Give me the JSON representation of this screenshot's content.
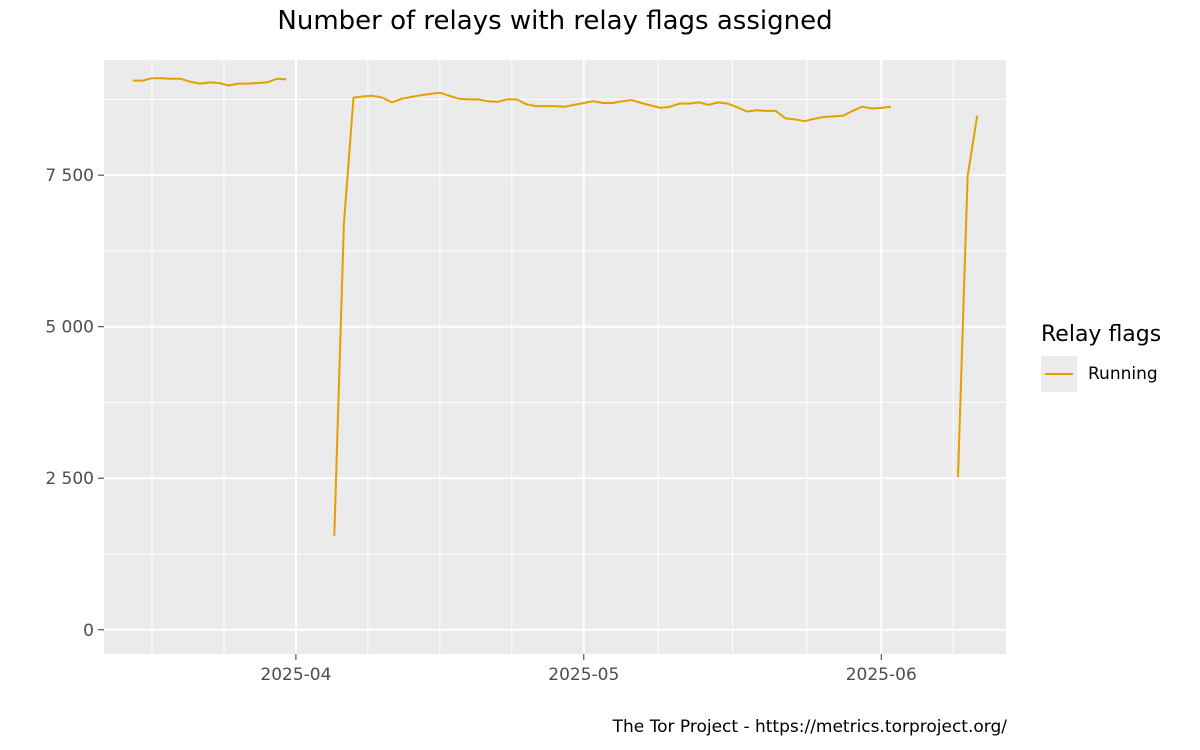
{
  "chart_data": {
    "type": "line",
    "title": "Number of relays with relay flags assigned",
    "xlabel": "",
    "ylabel": "",
    "legend_title": "Relay flags",
    "legend_position": "right",
    "caption": "The Tor Project - https://metrics.torproject.org/",
    "grid": true,
    "x_ticks": [
      "2025-04",
      "2025-05",
      "2025-06"
    ],
    "y_ticks": [
      0,
      2500,
      5000,
      7500
    ],
    "y_tick_labels": [
      "0",
      "2 500",
      "5 000",
      "7 500"
    ],
    "xlim": [
      "2025-03-12",
      "2025-06-14"
    ],
    "ylim": [
      -400,
      9400
    ],
    "colors": {
      "Running": "#E69F00",
      "panel": "#EBEBEB",
      "grid": "#FFFFFF"
    },
    "series": [
      {
        "name": "Running",
        "segments": [
          [
            [
              "2025-03-15",
              9060
            ],
            [
              "2025-03-16",
              9060
            ],
            [
              "2025-03-17",
              9100
            ],
            [
              "2025-03-18",
              9100
            ],
            [
              "2025-03-19",
              9090
            ],
            [
              "2025-03-20",
              9090
            ],
            [
              "2025-03-21",
              9040
            ],
            [
              "2025-03-22",
              9010
            ],
            [
              "2025-03-23",
              9030
            ],
            [
              "2025-03-24",
              9020
            ],
            [
              "2025-03-25",
              8980
            ],
            [
              "2025-03-26",
              9010
            ],
            [
              "2025-03-27",
              9010
            ],
            [
              "2025-03-28",
              9020
            ],
            [
              "2025-03-29",
              9030
            ],
            [
              "2025-03-30",
              9090
            ],
            [
              "2025-03-31",
              9080
            ]
          ],
          [
            [
              "2025-04-05",
              1550
            ],
            [
              "2025-04-06",
              6700
            ],
            [
              "2025-04-07",
              8780
            ],
            [
              "2025-04-08",
              8800
            ],
            [
              "2025-04-09",
              8810
            ],
            [
              "2025-04-10",
              8780
            ],
            [
              "2025-04-11",
              8700
            ],
            [
              "2025-04-12",
              8760
            ],
            [
              "2025-04-13",
              8790
            ],
            [
              "2025-04-14",
              8820
            ],
            [
              "2025-04-15",
              8840
            ],
            [
              "2025-04-16",
              8860
            ],
            [
              "2025-04-17",
              8810
            ],
            [
              "2025-04-18",
              8760
            ],
            [
              "2025-04-19",
              8750
            ],
            [
              "2025-04-20",
              8750
            ],
            [
              "2025-04-21",
              8720
            ],
            [
              "2025-04-22",
              8710
            ],
            [
              "2025-04-23",
              8750
            ],
            [
              "2025-04-24",
              8750
            ],
            [
              "2025-04-25",
              8670
            ],
            [
              "2025-04-26",
              8640
            ],
            [
              "2025-04-27",
              8640
            ],
            [
              "2025-04-28",
              8640
            ],
            [
              "2025-04-29",
              8630
            ],
            [
              "2025-04-30",
              8660
            ],
            [
              "2025-05-01",
              8690
            ],
            [
              "2025-05-02",
              8720
            ],
            [
              "2025-05-03",
              8690
            ],
            [
              "2025-05-04",
              8690
            ],
            [
              "2025-05-05",
              8720
            ],
            [
              "2025-05-06",
              8740
            ],
            [
              "2025-05-07",
              8690
            ],
            [
              "2025-05-08",
              8650
            ],
            [
              "2025-05-09",
              8610
            ],
            [
              "2025-05-10",
              8630
            ],
            [
              "2025-05-11",
              8680
            ],
            [
              "2025-05-12",
              8680
            ],
            [
              "2025-05-13",
              8700
            ],
            [
              "2025-05-14",
              8660
            ],
            [
              "2025-05-15",
              8700
            ],
            [
              "2025-05-16",
              8680
            ],
            [
              "2025-05-17",
              8620
            ],
            [
              "2025-05-18",
              8550
            ],
            [
              "2025-05-19",
              8570
            ],
            [
              "2025-05-20",
              8560
            ],
            [
              "2025-05-21",
              8560
            ],
            [
              "2025-05-22",
              8440
            ],
            [
              "2025-05-23",
              8420
            ],
            [
              "2025-05-24",
              8390
            ],
            [
              "2025-05-25",
              8430
            ],
            [
              "2025-05-26",
              8460
            ],
            [
              "2025-05-27",
              8470
            ],
            [
              "2025-05-28",
              8480
            ],
            [
              "2025-05-29",
              8560
            ],
            [
              "2025-05-30",
              8630
            ],
            [
              "2025-05-31",
              8600
            ],
            [
              "2025-06-01",
              8610
            ],
            [
              "2025-06-02",
              8630
            ]
          ],
          [
            [
              "2025-06-09",
              2520
            ],
            [
              "2025-06-10",
              7480
            ],
            [
              "2025-06-11",
              8480
            ]
          ]
        ]
      }
    ]
  }
}
